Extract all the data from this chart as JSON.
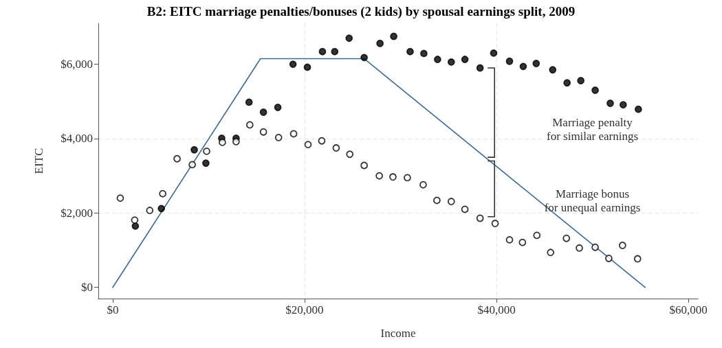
{
  "chart_data": {
    "type": "scatter",
    "title": "B2: EITC marriage penalties/bonuses (2 kids) by spousal earnings split, 2009",
    "xlabel": "Income",
    "ylabel": "EITC",
    "xlim": [
      -1500,
      61000
    ],
    "ylim": [
      -300,
      7100
    ],
    "xticks": [
      {
        "value": 0,
        "label": "$0"
      },
      {
        "value": 20000,
        "label": "$20,000"
      },
      {
        "value": 40000,
        "label": "$40,000"
      },
      {
        "value": 60000,
        "label": "$60,000"
      }
    ],
    "yticks": [
      {
        "value": 0,
        "label": "$0"
      },
      {
        "value": 2000,
        "label": "$2,000"
      },
      {
        "value": 4000,
        "label": "$4,000"
      },
      {
        "value": 6000,
        "label": "$6,000"
      }
    ],
    "grid": true,
    "marker": "circle",
    "annotations": [
      "Marriage penalty\nfor similar earnings",
      "Marriage bonus\nfor unequal earnings"
    ],
    "series": [
      {
        "type": "line",
        "color": "#3e6991",
        "marker": "none",
        "line_style": "solid",
        "x": [
          0,
          15400,
          26200,
          55500
        ],
        "values": [
          0,
          6150,
          6150,
          0
        ]
      },
      {
        "color": "#000000",
        "x": [
          2360,
          5070,
          8500,
          9710,
          11360,
          12860,
          14210,
          15710,
          17210,
          18790,
          20290,
          21860,
          23140,
          24640,
          26210,
          27860,
          29290,
          31000,
          32430,
          33860,
          35290,
          36710,
          38290,
          39710,
          41360,
          42790,
          44140,
          45860,
          47360,
          48790,
          50290,
          51860,
          53210,
          54790
        ],
        "values": [
          1650,
          2120,
          3700,
          3340,
          4010,
          4010,
          4980,
          4710,
          4840,
          6000,
          5920,
          6340,
          6340,
          6700,
          6180,
          6560,
          6750,
          6340,
          6290,
          6130,
          6060,
          6130,
          5900,
          6300,
          6080,
          5940,
          6020,
          5850,
          5500,
          5560,
          5300,
          4950,
          4910,
          4790
        ]
      },
      {
        "color": "#ffffff",
        "x": [
          790,
          2290,
          3860,
          5210,
          6710,
          8290,
          9790,
          11430,
          12860,
          14290,
          15710,
          17290,
          18860,
          20360,
          21790,
          23290,
          24710,
          26210,
          27790,
          29210,
          30710,
          32360,
          33790,
          35290,
          36710,
          38290,
          39860,
          41360,
          42710,
          44210,
          45640,
          47290,
          48640,
          50290,
          51710,
          53140,
          54710
        ],
        "values": [
          2400,
          1810,
          2070,
          2520,
          3460,
          3300,
          3660,
          3900,
          3920,
          4370,
          4180,
          4030,
          4130,
          3840,
          3940,
          3750,
          3580,
          3280,
          3000,
          2970,
          2950,
          2760,
          2340,
          2310,
          2100,
          1860,
          1720,
          1280,
          1210,
          1400,
          940,
          1320,
          1060,
          1080,
          780,
          1130,
          770
        ]
      }
    ]
  }
}
